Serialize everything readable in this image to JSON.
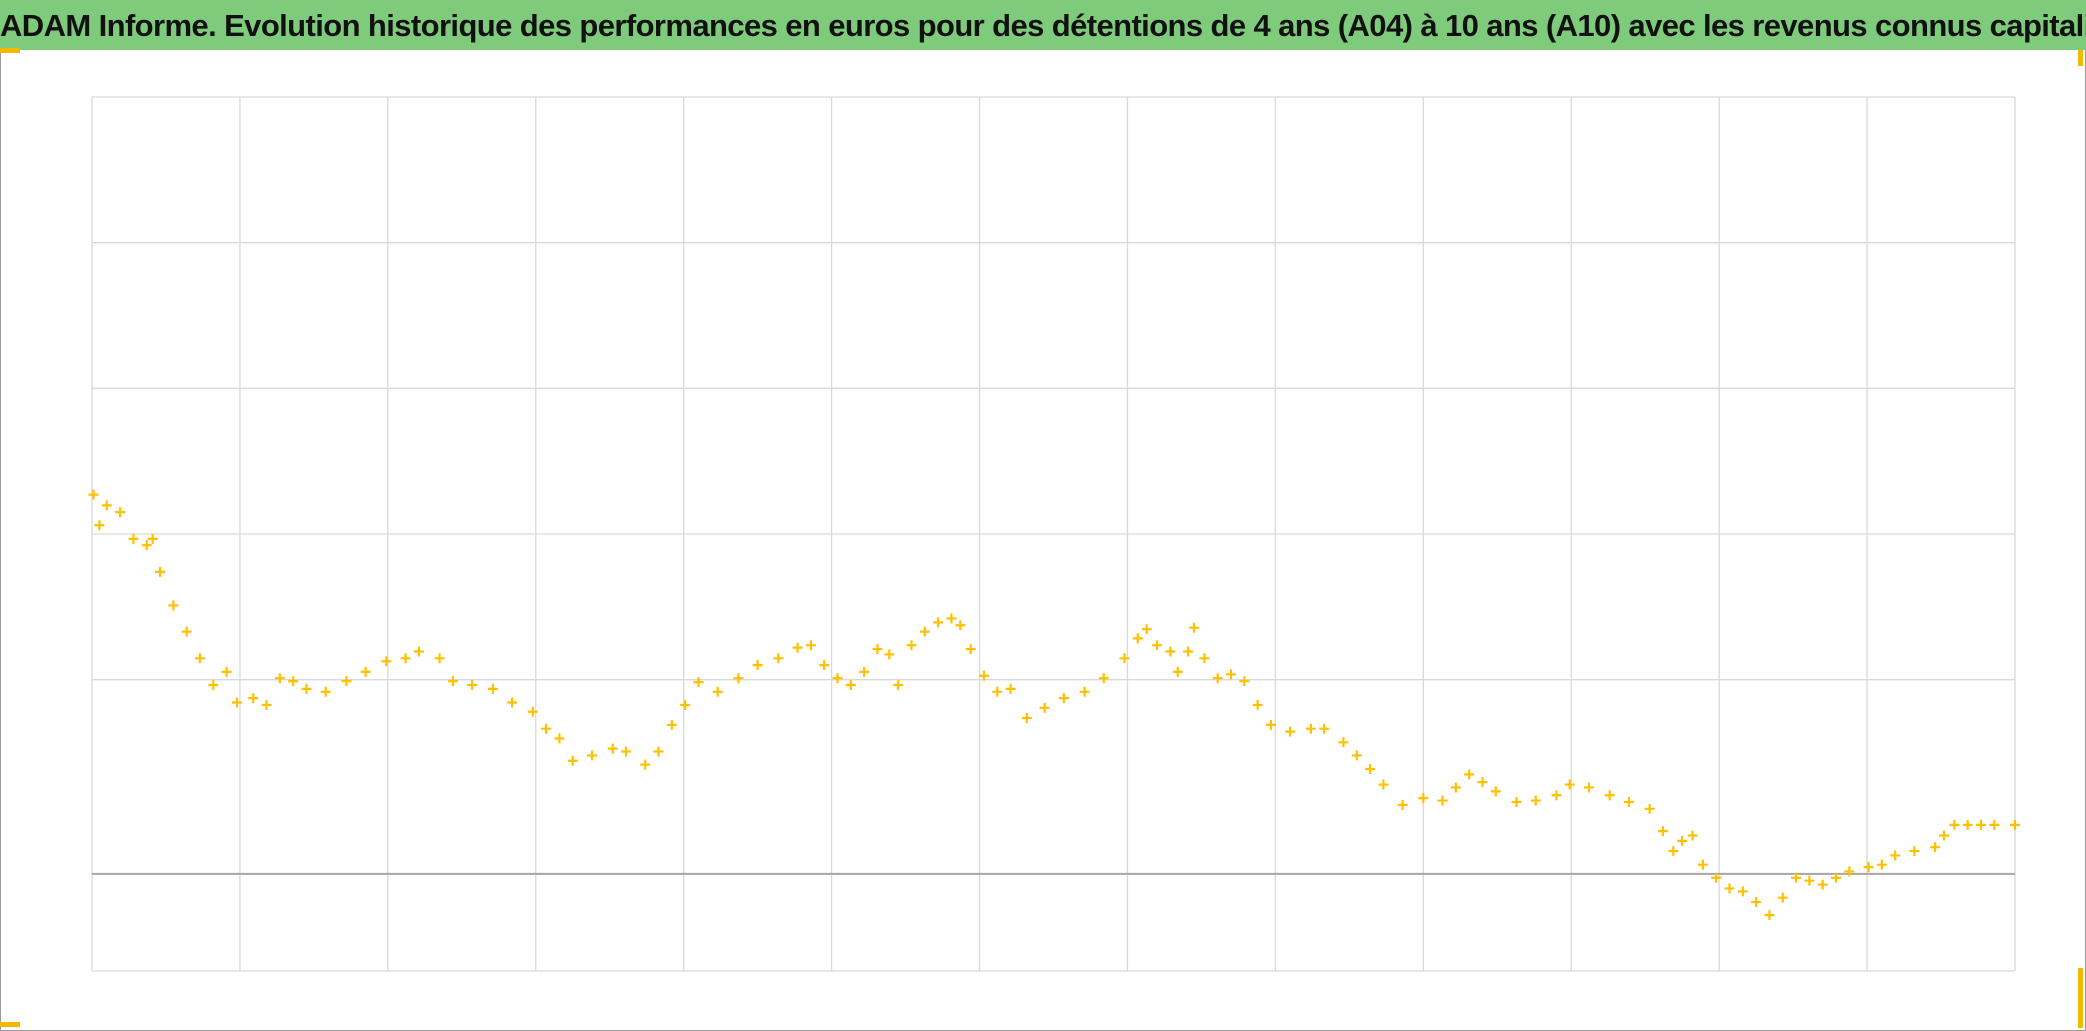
{
  "chart_data": {
    "type": "scatter",
    "title": "ADAM Informe. Evolution historique des performances en euros pour des détentions de 4 ans (A04) à 10 ans (A10) avec les revenus connus capitalisés",
    "xlim": [
      0,
      13
    ],
    "xticks": [
      0,
      1,
      2,
      3,
      4,
      5,
      6,
      7,
      8,
      9,
      10,
      11,
      12,
      13
    ],
    "ylim": [
      -2,
      16
    ],
    "yticks": [
      -2,
      0,
      4,
      7,
      10,
      13,
      16
    ],
    "grid": true,
    "marker": "plus",
    "series": [
      {
        "color": "#ffc000",
        "x": [
          0.01,
          0.05,
          0.1,
          0.19,
          0.28,
          0.37,
          0.41,
          0.46,
          0.55,
          0.64,
          0.73,
          0.82,
          0.91,
          0.98,
          1.09,
          1.18,
          1.27,
          1.36,
          1.45,
          1.58,
          1.72,
          1.85,
          1.99,
          2.12,
          2.21,
          2.35,
          2.44,
          2.57,
          2.71,
          2.84,
          2.98,
          3.07,
          3.16,
          3.25,
          3.38,
          3.52,
          3.61,
          3.74,
          3.83,
          3.92,
          4.01,
          4.1,
          4.23,
          4.37,
          4.5,
          4.64,
          4.77,
          4.86,
          4.95,
          5.04,
          5.13,
          5.22,
          5.31,
          5.39,
          5.45,
          5.54,
          5.63,
          5.72,
          5.81,
          5.87,
          5.94,
          6.03,
          6.12,
          6.21,
          6.32,
          6.44,
          6.57,
          6.71,
          6.84,
          6.98,
          7.07,
          7.13,
          7.2,
          7.29,
          7.34,
          7.41,
          7.45,
          7.52,
          7.61,
          7.7,
          7.79,
          7.88,
          7.97,
          8.1,
          8.24,
          8.33,
          8.46,
          8.55,
          8.64,
          8.73,
          8.86,
          9.0,
          9.13,
          9.22,
          9.31,
          9.4,
          9.49,
          9.63,
          9.76,
          9.9,
          9.99,
          10.12,
          10.26,
          10.39,
          10.53,
          10.62,
          10.69,
          10.75,
          10.82,
          10.89,
          10.98,
          11.07,
          11.16,
          11.25,
          11.34,
          11.43,
          11.52,
          11.61,
          11.7,
          11.79,
          11.88,
          12.01,
          12.1,
          12.19,
          12.32,
          12.46,
          12.52,
          12.59,
          12.68,
          12.77,
          12.86,
          13.0
        ],
        "values": [
          7.81,
          7.18,
          7.59,
          7.45,
          6.9,
          6.77,
          6.9,
          6.22,
          5.53,
          4.99,
          4.44,
          3.89,
          4.16,
          3.53,
          3.62,
          3.48,
          4.03,
          3.97,
          3.81,
          3.75,
          3.97,
          4.16,
          4.38,
          4.44,
          4.58,
          4.44,
          3.97,
          3.89,
          3.81,
          3.53,
          3.34,
          2.99,
          2.79,
          2.33,
          2.44,
          2.58,
          2.52,
          2.25,
          2.52,
          3.07,
          3.48,
          3.95,
          3.75,
          4.03,
          4.3,
          4.44,
          4.66,
          4.71,
          4.3,
          4.03,
          3.89,
          4.16,
          4.63,
          4.52,
          3.89,
          4.71,
          4.99,
          5.18,
          5.26,
          5.12,
          4.63,
          4.08,
          3.75,
          3.81,
          3.21,
          3.42,
          3.62,
          3.75,
          4.03,
          4.44,
          4.85,
          5.04,
          4.71,
          4.58,
          4.16,
          4.58,
          5.07,
          4.44,
          4.03,
          4.11,
          3.97,
          3.48,
          3.07,
          2.93,
          2.99,
          2.99,
          2.71,
          2.44,
          2.16,
          1.84,
          1.42,
          1.56,
          1.51,
          1.78,
          2.05,
          1.89,
          1.7,
          1.48,
          1.51,
          1.62,
          1.84,
          1.78,
          1.62,
          1.48,
          1.34,
          0.88,
          0.47,
          0.68,
          0.79,
          0.19,
          -0.08,
          -0.3,
          -0.36,
          -0.58,
          -0.85,
          -0.49,
          -0.08,
          -0.14,
          -0.22,
          -0.08,
          0.05,
          0.14,
          0.19,
          0.38,
          0.47,
          0.55,
          0.79,
          1.01,
          1.01,
          1.01,
          1.01,
          1.01
        ]
      }
    ]
  }
}
